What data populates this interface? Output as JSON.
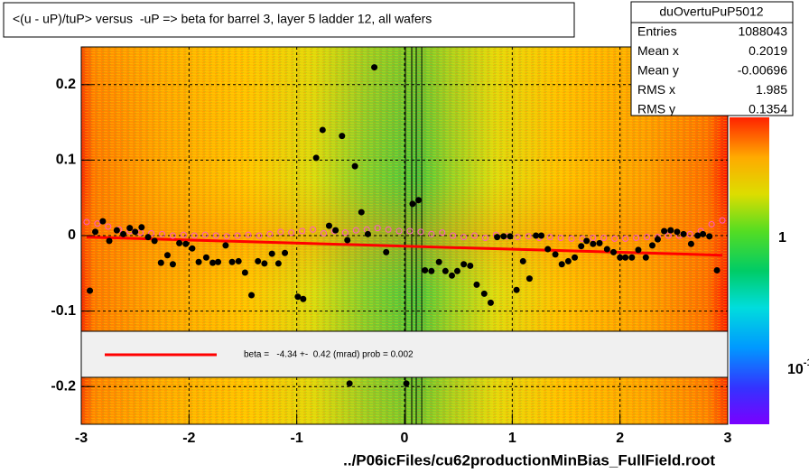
{
  "chart_data": {
    "type": "scatter",
    "title": "<(u - uP)/tuP> versus  -uP => beta for barrel 3, layer 5 ladder 12, all wafers",
    "x_label": "../P06icFiles/cu62productionMinBias_FullField.root",
    "xlim": [
      -3,
      3
    ],
    "xticks": [
      -3,
      -2,
      -1,
      0,
      1,
      2,
      3
    ],
    "ylim": [
      -0.25,
      0.25
    ],
    "yticks": [
      -0.2,
      -0.1,
      0,
      0.1,
      0.2
    ],
    "grid": true,
    "series": [
      {
        "color": "#000000",
        "marker": "filled",
        "x": [
          -2.92,
          -2.87,
          -2.8,
          -2.74,
          -2.67,
          -2.61,
          -2.55,
          -2.5,
          -2.44,
          -2.38,
          -2.32,
          -2.26,
          -2.2,
          -2.15,
          -2.09,
          -2.03,
          -1.97,
          -1.91,
          -1.84,
          -1.78,
          -1.73,
          -1.66,
          -1.6,
          -1.54,
          -1.48,
          -1.42,
          -1.36,
          -1.3,
          -1.23,
          -1.17,
          -1.11,
          -0.99,
          -0.94,
          -0.82,
          -0.76,
          -0.7,
          -0.64,
          -0.58,
          -0.53,
          -0.51,
          -0.46,
          -0.4,
          -0.34,
          -0.28,
          -0.17,
          0.017,
          0.075,
          0.13,
          0.19,
          0.25,
          0.32,
          0.38,
          0.44,
          0.49,
          0.55,
          0.61,
          0.67,
          0.74,
          0.8,
          0.86,
          0.92,
          0.98,
          1.04,
          1.1,
          1.16,
          1.22,
          1.27,
          1.33,
          1.4,
          1.46,
          1.52,
          1.58,
          1.64,
          1.69,
          1.75,
          1.81,
          1.88,
          1.94,
          2.0,
          2.05,
          2.11,
          2.17,
          2.24,
          2.3,
          2.35,
          2.41,
          2.47,
          2.53,
          2.59,
          2.66,
          2.72,
          2.77,
          2.83,
          2.9
        ],
        "values": [
          -0.073,
          0.005,
          0.019,
          -0.007,
          0.007,
          0.002,
          0.01,
          0.005,
          0.011,
          -0.002,
          -0.007,
          -0.036,
          -0.026,
          -0.038,
          -0.01,
          -0.011,
          -0.017,
          -0.035,
          -0.029,
          -0.036,
          -0.035,
          -0.013,
          -0.035,
          -0.034,
          -0.049,
          -0.079,
          -0.034,
          -0.037,
          -0.024,
          -0.037,
          -0.023,
          -0.081,
          -0.084,
          0.103,
          0.14,
          0.013,
          0.007,
          0.132,
          -0.006,
          -0.196,
          0.092,
          0.031,
          0.002,
          0.223,
          -0.022,
          -0.196,
          0.042,
          0.047,
          -0.046,
          -0.047,
          -0.035,
          -0.047,
          -0.053,
          -0.047,
          -0.038,
          -0.04,
          -0.065,
          -0.077,
          -0.089,
          -0.002,
          -0.001,
          -0.001,
          -0.072,
          -0.034,
          -0.057,
          0.0,
          0.0,
          -0.018,
          -0.025,
          -0.038,
          -0.034,
          -0.029,
          -0.014,
          -0.007,
          -0.011,
          -0.01,
          -0.018,
          -0.022,
          -0.029,
          -0.029,
          -0.029,
          -0.019,
          -0.029,
          -0.013,
          -0.005,
          0.006,
          0.007,
          0.005,
          0.002,
          -0.011,
          0.0,
          0.002,
          -0.001,
          -0.046
        ]
      },
      {
        "color": "#ff55cc",
        "marker": "open",
        "x": [
          -2.95,
          -2.85,
          -2.75,
          -2.65,
          -2.55,
          -2.45,
          -2.35,
          -2.25,
          -2.15,
          -2.05,
          -1.95,
          -1.85,
          -1.75,
          -1.65,
          -1.55,
          -1.45,
          -1.35,
          -1.25,
          -1.15,
          -1.05,
          -0.95,
          -0.85,
          -0.75,
          -0.65,
          -0.55,
          -0.45,
          -0.35,
          -0.25,
          -0.15,
          -0.05,
          0.05,
          0.15,
          0.25,
          0.35,
          0.45,
          0.55,
          0.65,
          0.75,
          0.85,
          0.95,
          1.05,
          1.15,
          1.25,
          1.35,
          1.45,
          1.55,
          1.65,
          1.75,
          1.85,
          1.95,
          2.05,
          2.15,
          2.25,
          2.35,
          2.45,
          2.55,
          2.65,
          2.75,
          2.85,
          2.95
        ],
        "values": [
          0.018,
          0.016,
          0.012,
          0.008,
          0.006,
          0.004,
          0.003,
          0.002,
          0.0,
          0.001,
          0.0,
          0.001,
          0.0,
          -0.001,
          0.0,
          0.001,
          0.0,
          0.002,
          0.005,
          0.004,
          0.006,
          0.008,
          0.003,
          0.006,
          0.004,
          0.007,
          0.008,
          0.01,
          0.008,
          0.006,
          0.006,
          0.005,
          0.002,
          0.004,
          0.0,
          -0.002,
          0.0,
          -0.003,
          0.001,
          -0.001,
          -0.002,
          -0.001,
          -0.003,
          -0.002,
          -0.003,
          -0.004,
          -0.004,
          -0.003,
          -0.003,
          -0.004,
          -0.004,
          -0.003,
          -0.002,
          -0.002,
          0.0,
          0.0,
          0.002,
          0.006,
          0.015,
          0.02
        ]
      }
    ],
    "fit": {
      "color": "#ff0000",
      "x": [
        -2.95,
        2.95
      ],
      "values": [
        -0.002,
        -0.026
      ]
    },
    "vlines": [
      0.008,
      0.067,
      0.109,
      0.16
    ],
    "legend_text": "beta =   -4.34 +-  0.42 (mrad) prob = 0.002",
    "stats": {
      "title": "duOvertuPuP5012",
      "rows": [
        [
          "Entries",
          1088043
        ],
        [
          "Mean x",
          0.2019
        ],
        [
          "Mean y",
          -0.00696
        ],
        [
          "RMS x",
          1.985
        ],
        [
          "RMS y",
          0.1354
        ]
      ]
    },
    "palette": {
      "labels": [
        "1",
        "10"
      ],
      "exponent": "-1"
    }
  }
}
